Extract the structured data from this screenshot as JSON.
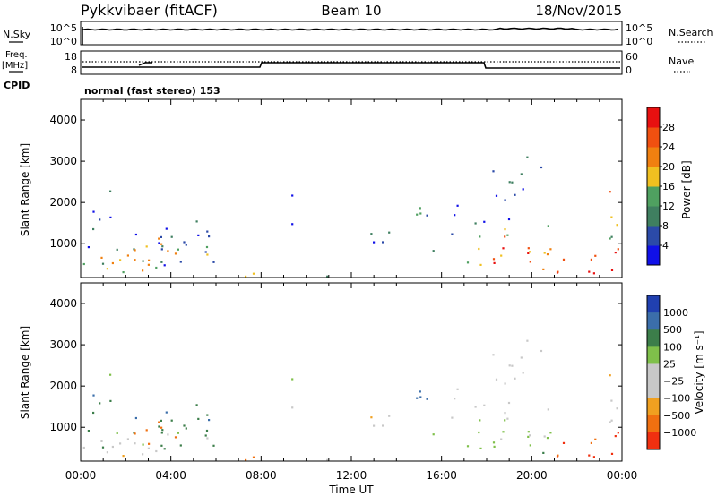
{
  "header": {
    "station": "Pykkvibaer (fitACF)",
    "beam": "Beam 10",
    "date": "18/Nov/2015"
  },
  "noise_panel": {
    "left_label": "N.Sky",
    "right_label": "N.Search",
    "left_ticks": [
      "10^5",
      "10^0"
    ],
    "right_ticks": [
      "10^5",
      "10^0"
    ]
  },
  "freq_panel": {
    "left_label_line1": "Freq.",
    "left_label_line2": "[MHz]",
    "right_label": "Nave",
    "left_ticks": [
      "18",
      "8"
    ],
    "right_ticks": [
      "60",
      "0"
    ],
    "cpid_label": "CPID",
    "cpid_text": "normal (fast stereo) 153"
  },
  "colors": {
    "power_scale": [
      "#1010e8",
      "#2b4aa8",
      "#3f7f60",
      "#4fa060",
      "#f0c020",
      "#f08010",
      "#f05010",
      "#e81010"
    ],
    "velocity_scale": [
      "#2040b0",
      "#3b6eaa",
      "#3c7e4a",
      "#7fc04a",
      "#c8c8c8",
      "#c8c8c8",
      "#f0a020",
      "#f07010",
      "#f03010"
    ]
  },
  "chart_data": [
    {
      "type": "heatmap",
      "name": "power",
      "ylabel": "Slant Range [km]",
      "y_ticks": [
        1000,
        2000,
        3000,
        4000
      ],
      "ylim": [
        180,
        4500
      ],
      "x_ticks": [
        "00:00",
        "04:00",
        "08:00",
        "12:00",
        "16:00",
        "20:00",
        "00:00"
      ],
      "xlim_hours": [
        0,
        24
      ],
      "colorbar_label": "Power [dB]",
      "colorbar_ticks": [
        "4",
        "8",
        "12",
        "16",
        "20",
        "24",
        "28"
      ],
      "colorbar_range": [
        0,
        32
      ]
    },
    {
      "type": "heatmap",
      "name": "velocity",
      "ylabel": "Slant Range [km]",
      "y_ticks": [
        1000,
        2000,
        3000,
        4000
      ],
      "ylim": [
        180,
        4500
      ],
      "x_ticks": [
        "00:00",
        "04:00",
        "08:00",
        "12:00",
        "16:00",
        "20:00",
        "00:00"
      ],
      "xlabel": "Time UT",
      "xlim_hours": [
        0,
        24
      ],
      "colorbar_label": "Velocity [m s⁻¹]",
      "colorbar_ticks": [
        "1000",
        "500",
        "100",
        "25",
        "−25",
        "−100",
        "−500",
        "−1000"
      ]
    }
  ]
}
